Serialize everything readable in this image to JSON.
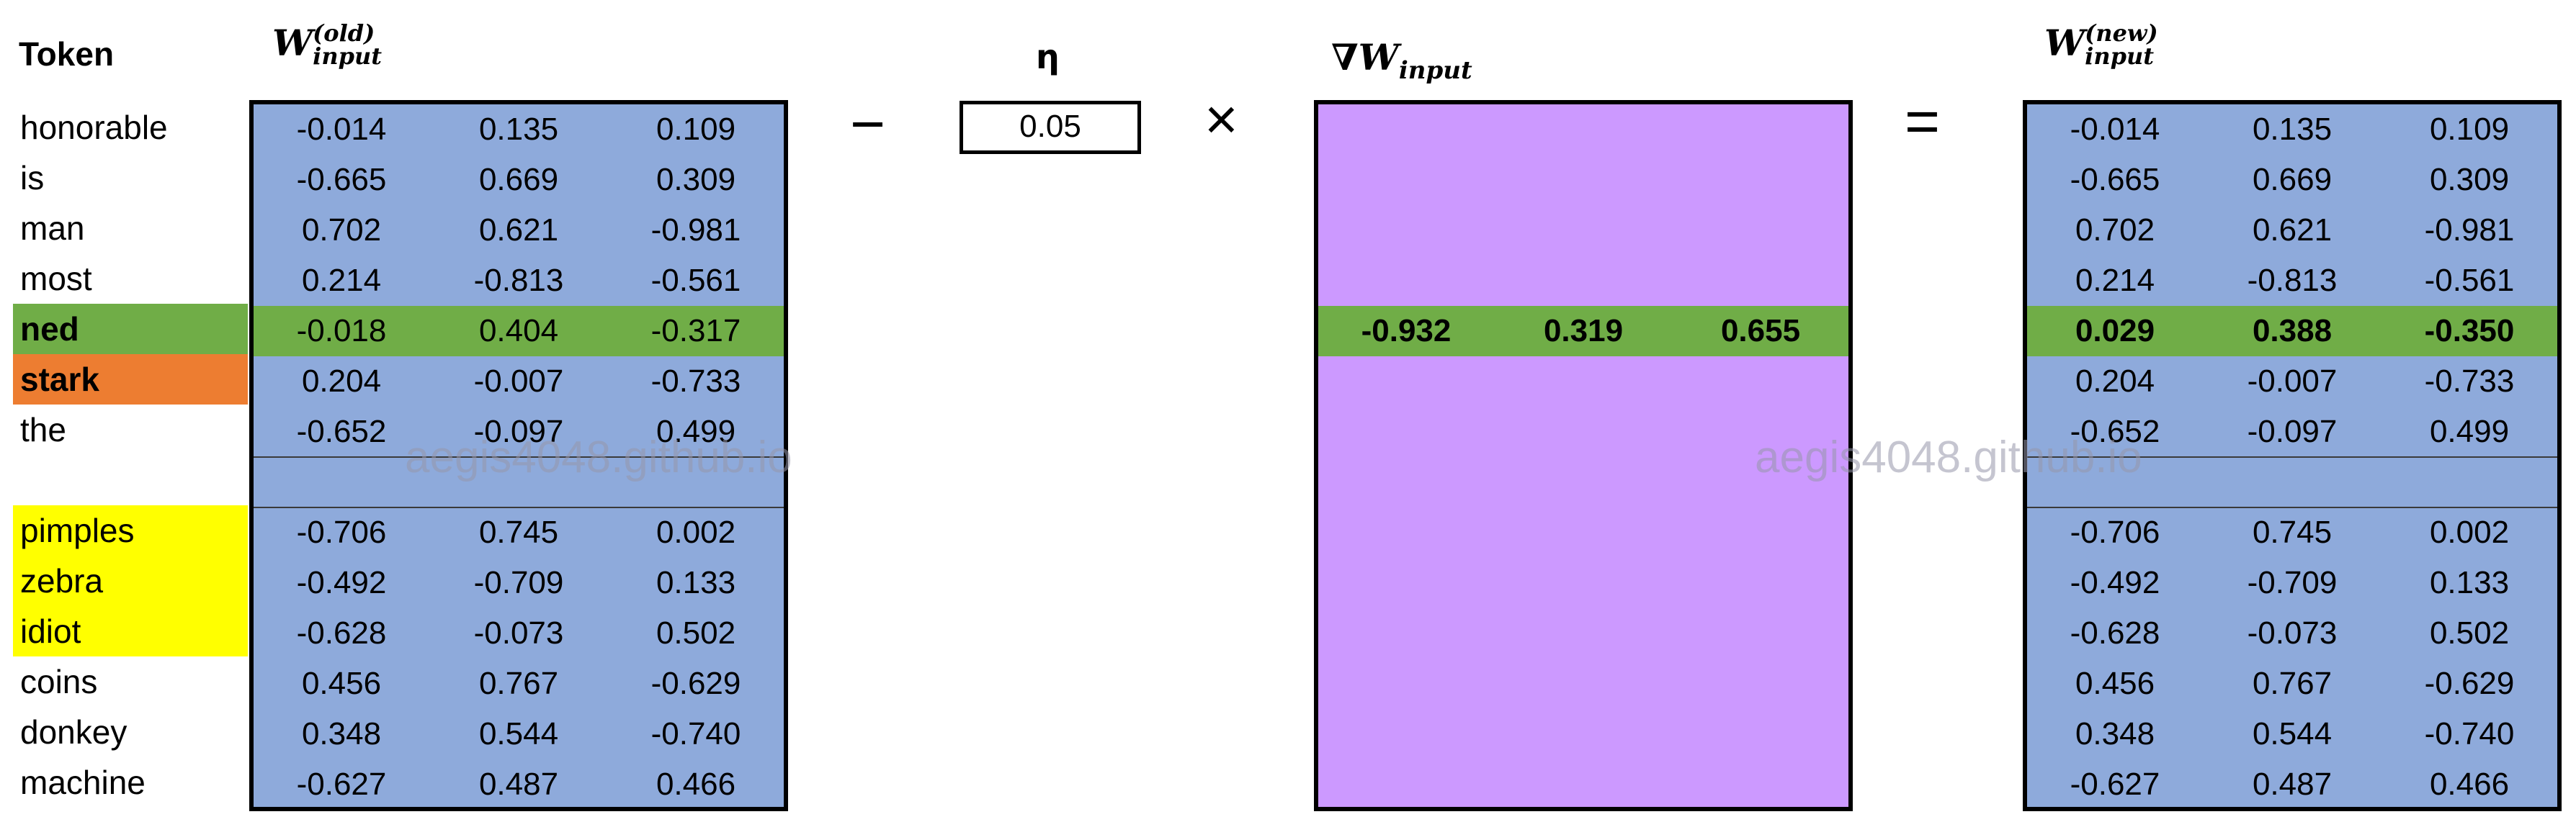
{
  "headers": {
    "token": "Token",
    "w_old": {
      "base": "W",
      "sup": "(old)",
      "sub": "input"
    },
    "eta": "η",
    "grad": {
      "nabla": "∇",
      "base": "W",
      "sub": "input"
    },
    "w_new": {
      "base": "W",
      "sup": "(new)",
      "sub": "input"
    }
  },
  "operators": {
    "minus": "−",
    "times": "×",
    "equals": "="
  },
  "eta_value": "0.05",
  "watermark": "aegis4048.github.io",
  "colors": {
    "matrix_blue": "#8eaadb",
    "gradient_purple": "#cc99ff",
    "center_green": "#70ad47",
    "context_orange": "#ed7d31",
    "negative_yellow": "#ffff00"
  },
  "tokens": [
    {
      "label": "honorable",
      "highlight": "none",
      "bold": false
    },
    {
      "label": "is",
      "highlight": "none",
      "bold": false
    },
    {
      "label": "man",
      "highlight": "none",
      "bold": false
    },
    {
      "label": "most",
      "highlight": "none",
      "bold": false
    },
    {
      "label": "ned",
      "highlight": "green",
      "bold": true
    },
    {
      "label": "stark",
      "highlight": "orange",
      "bold": true
    },
    {
      "label": "the",
      "highlight": "none",
      "bold": false
    },
    {
      "label": "",
      "highlight": "none",
      "bold": false
    },
    {
      "label": "pimples",
      "highlight": "yellow",
      "bold": false
    },
    {
      "label": "zebra",
      "highlight": "yellow",
      "bold": false
    },
    {
      "label": "idiot",
      "highlight": "yellow",
      "bold": false
    },
    {
      "label": "coins",
      "highlight": "none",
      "bold": false
    },
    {
      "label": "donkey",
      "highlight": "none",
      "bold": false
    },
    {
      "label": "machine",
      "highlight": "none",
      "bold": false
    }
  ],
  "w_old": [
    [
      "-0.014",
      "0.135",
      "0.109"
    ],
    [
      "-0.665",
      "0.669",
      "0.309"
    ],
    [
      "0.702",
      "0.621",
      "-0.981"
    ],
    [
      "0.214",
      "-0.813",
      "-0.561"
    ],
    [
      "-0.018",
      "0.404",
      "-0.317"
    ],
    [
      "0.204",
      "-0.007",
      "-0.733"
    ],
    [
      "-0.652",
      "-0.097",
      "0.499"
    ],
    [
      "",
      "",
      ""
    ],
    [
      "-0.706",
      "0.745",
      "0.002"
    ],
    [
      "-0.492",
      "-0.709",
      "0.133"
    ],
    [
      "-0.628",
      "-0.073",
      "0.502"
    ],
    [
      "0.456",
      "0.767",
      "-0.629"
    ],
    [
      "0.348",
      "0.544",
      "-0.740"
    ],
    [
      "-0.627",
      "0.487",
      "0.466"
    ]
  ],
  "grad_row": [
    "-0.932",
    "0.319",
    "0.655"
  ],
  "w_new": [
    [
      "-0.014",
      "0.135",
      "0.109"
    ],
    [
      "-0.665",
      "0.669",
      "0.309"
    ],
    [
      "0.702",
      "0.621",
      "-0.981"
    ],
    [
      "0.214",
      "-0.813",
      "-0.561"
    ],
    [
      "0.029",
      "0.388",
      "-0.350"
    ],
    [
      "0.204",
      "-0.007",
      "-0.733"
    ],
    [
      "-0.652",
      "-0.097",
      "0.499"
    ],
    [
      "",
      "",
      ""
    ],
    [
      "-0.706",
      "0.745",
      "0.002"
    ],
    [
      "-0.492",
      "-0.709",
      "0.133"
    ],
    [
      "-0.628",
      "-0.073",
      "0.502"
    ],
    [
      "0.456",
      "0.767",
      "-0.629"
    ],
    [
      "0.348",
      "0.544",
      "-0.740"
    ],
    [
      "-0.627",
      "0.487",
      "0.466"
    ]
  ]
}
